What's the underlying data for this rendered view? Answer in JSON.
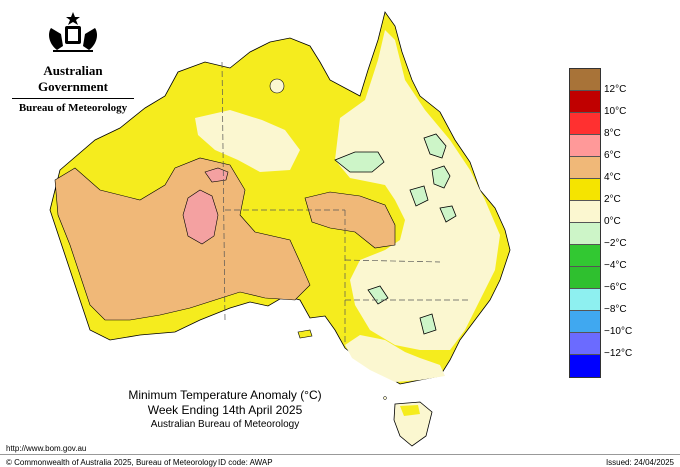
{
  "header": {
    "government": "Australian Government",
    "bureau": "Bureau of Meteorology"
  },
  "map_title": {
    "line1": "Minimum Temperature Anomaly (°C)",
    "line2": "Week Ending 14th April 2025",
    "line3": "Australian Bureau of Meteorology"
  },
  "legend": {
    "labels": [
      "12°C",
      "10°C",
      "8°C",
      "6°C",
      "4°C",
      "2°C",
      "0°C",
      "−2°C",
      "−4°C",
      "−6°C",
      "−8°C",
      "−10°C",
      "−12°C"
    ],
    "colors": [
      "#a87338",
      "#c00000",
      "#ff3030",
      "#ff9999",
      "#f0b878",
      "#f5e400",
      "#fbf7d0",
      "#cdf5c8",
      "#32c832",
      "#2fc02f",
      "#8ef0f0",
      "#40a8f0",
      "#6b6bff",
      "#0000ff"
    ]
  },
  "map_colors": {
    "anomaly_0_2": "#fbf7d0",
    "anomaly_2_4": "#f5ec1e",
    "anomaly_4_6": "#f0b878",
    "anomaly_6_8": "#f4a1a1",
    "anomaly_neg2_0": "#cdf5c8",
    "ocean": "#ffffff"
  },
  "footer": {
    "url": "http://www.bom.gov.au",
    "copyright": "© Commonwealth of Australia 2025, Bureau of Meteorology",
    "id_code": "ID code: AWAP",
    "issued": "Issued: 24/04/2025"
  }
}
